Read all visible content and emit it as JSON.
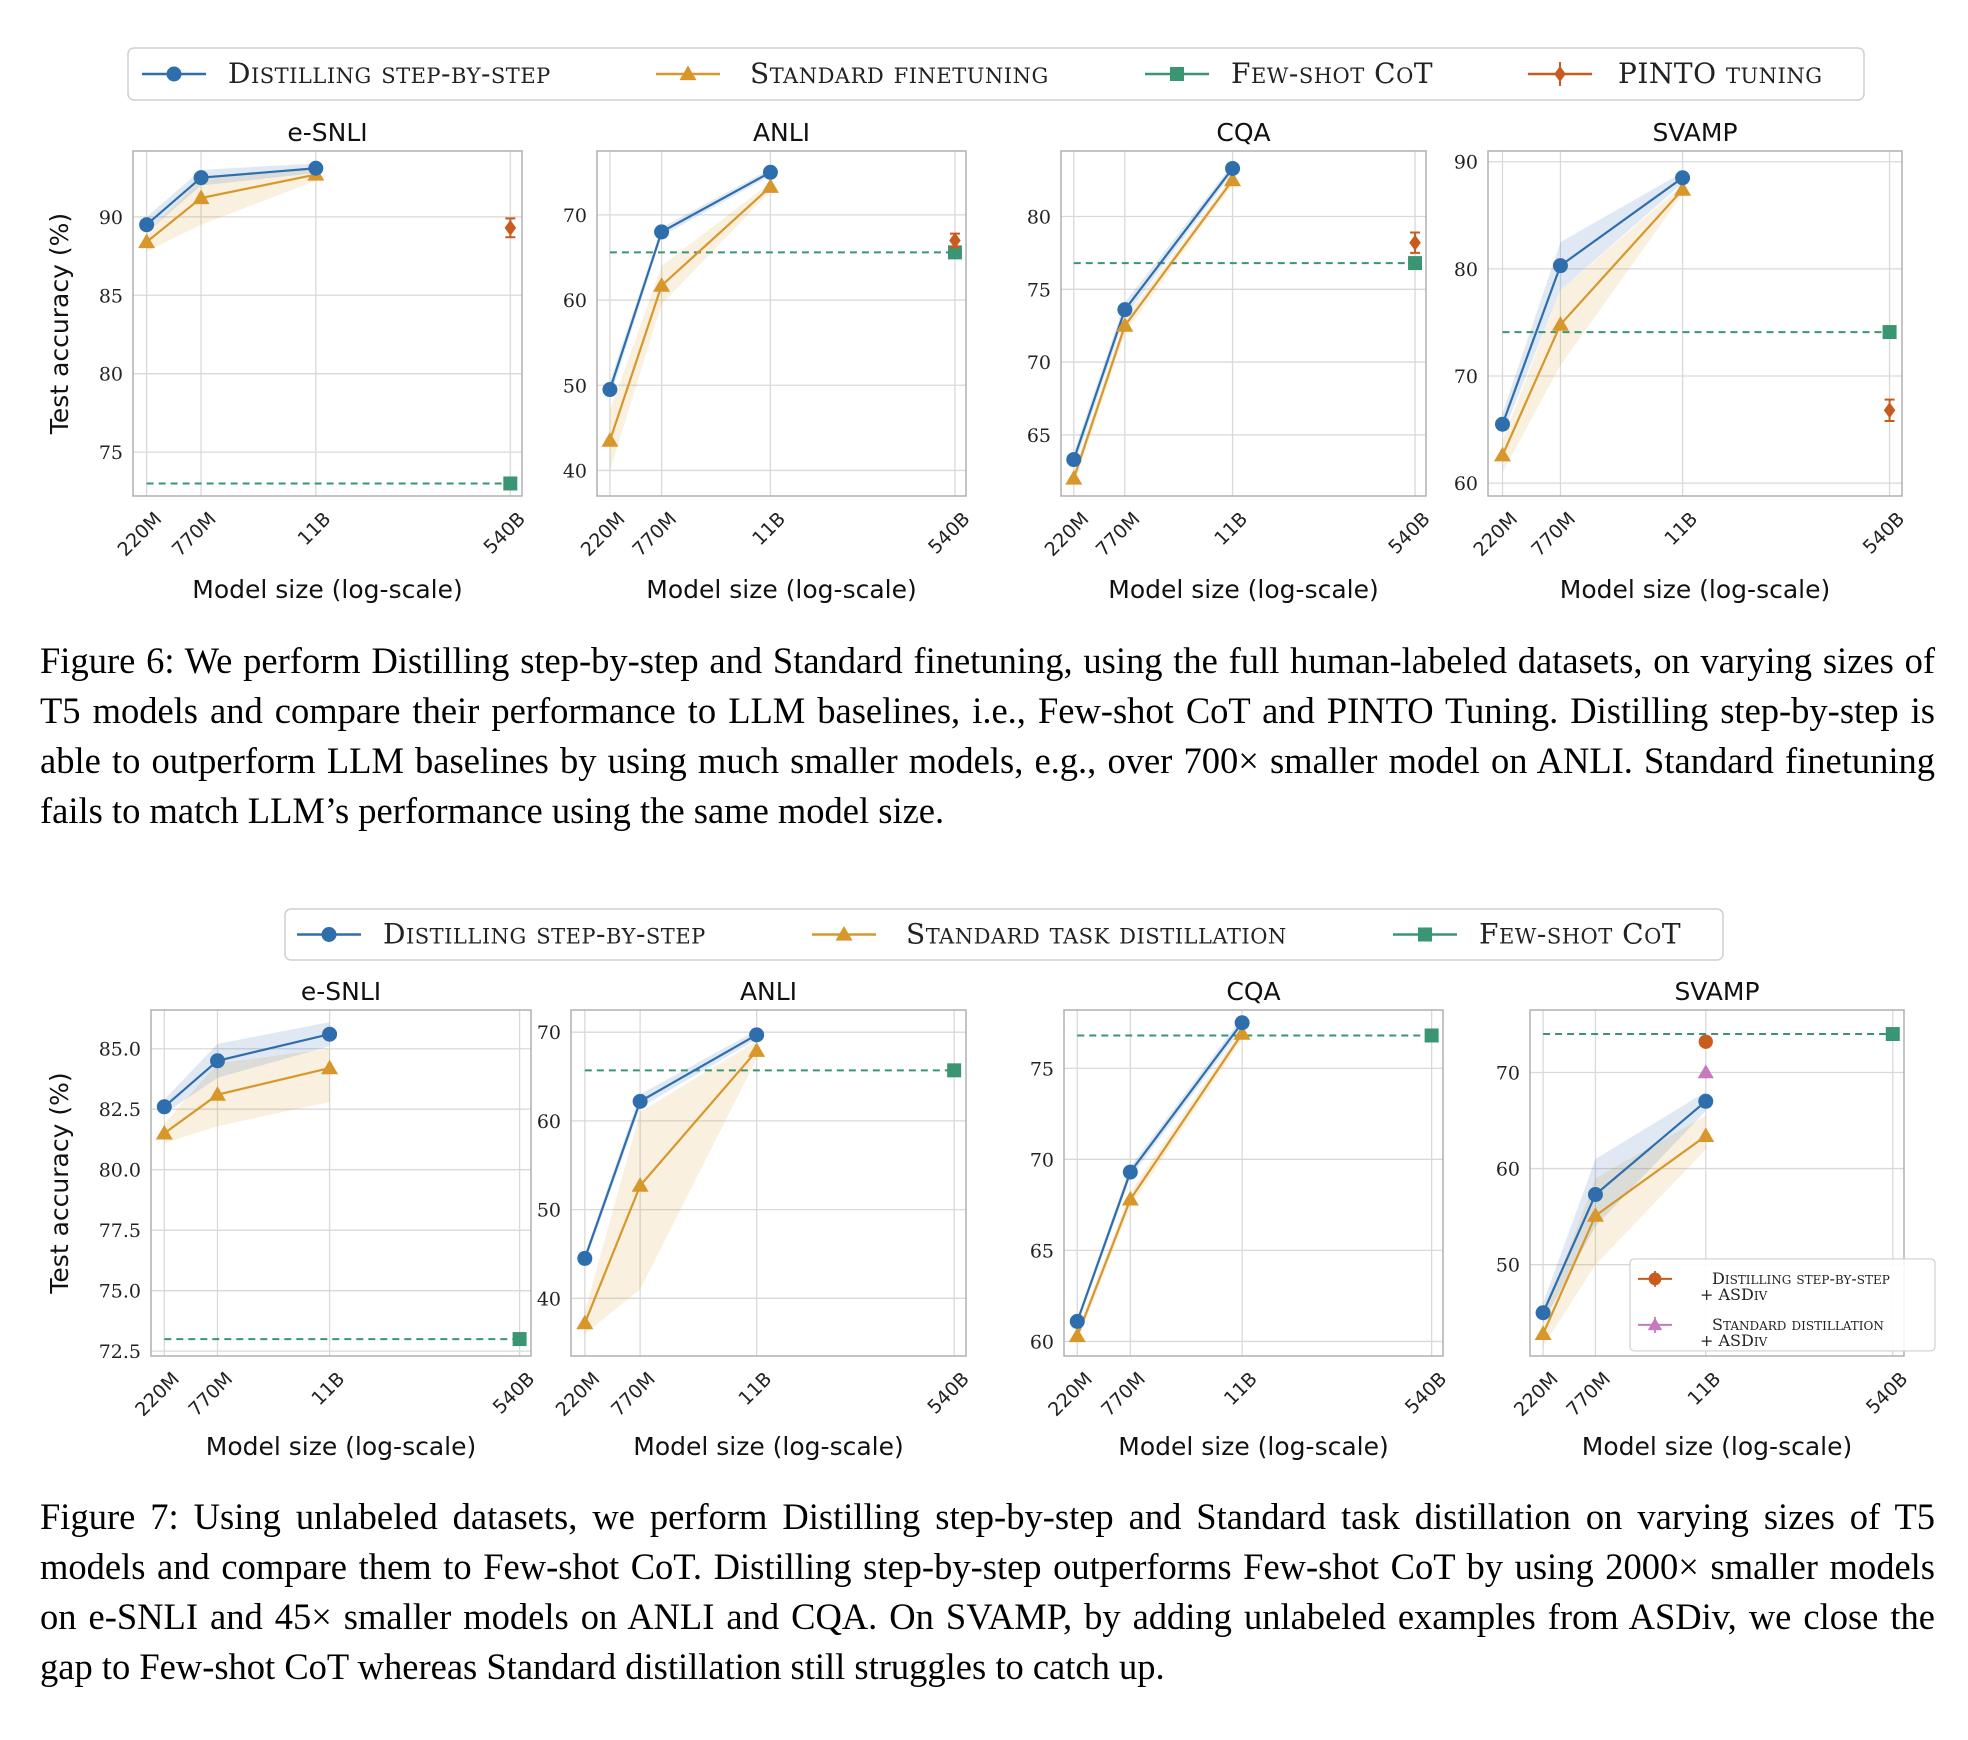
{
  "colors": {
    "distilling": "#2f6ead",
    "standard": "#d7972b",
    "fewshot": "#3a9572",
    "pinto": "#c75c1e",
    "asdiv_standard": "#c57ac0",
    "grid": "#d9d9d9",
    "frame": "#b0b0b0"
  },
  "x_ticks": [
    "220M",
    "770M",
    "11B",
    "540B"
  ],
  "chart_data": [
    {
      "figure": "fig6",
      "type": "line",
      "legend": [
        {
          "key": "distilling",
          "label": "Distilling step-by-step",
          "marker": "circle"
        },
        {
          "key": "standard",
          "label": "Standard finetuning",
          "marker": "triangle"
        },
        {
          "key": "fewshot",
          "label": "Few-shot CoT",
          "marker": "square"
        },
        {
          "key": "pinto",
          "label": "PINTO tuning",
          "marker": "diamond"
        }
      ],
      "ylabel": "Test accuracy (%)",
      "xlabel": "Model size (log-scale)",
      "panels": [
        {
          "title": "e-SNLI",
          "ylim": [
            72.2,
            94.2
          ],
          "yticks": [
            75,
            80,
            85,
            90
          ],
          "distilling": [
            89.5,
            92.5,
            93.1
          ],
          "distilling_band": [
            [
              89.0,
              90.0
            ],
            [
              92.0,
              93.0
            ],
            [
              92.8,
              93.4
            ]
          ],
          "standard": [
            88.4,
            91.2,
            92.7
          ],
          "standard_band": [
            [
              87.8,
              89.0
            ],
            [
              89.5,
              92.4
            ],
            [
              92.3,
              93.1
            ]
          ],
          "fewshot": 73.0,
          "pinto": 89.3,
          "pinto_err": 0.6
        },
        {
          "title": "ANLI",
          "ylim": [
            37,
            77.5
          ],
          "yticks": [
            40,
            50,
            60,
            70
          ],
          "distilling": [
            49.5,
            68.0,
            75.0
          ],
          "distilling_band": [
            [
              48.5,
              50.5
            ],
            [
              67.5,
              68.5
            ],
            [
              74.6,
              75.4
            ]
          ],
          "standard": [
            43.5,
            61.7,
            73.3
          ],
          "standard_band": [
            [
              40.0,
              47.0
            ],
            [
              59.5,
              64.0
            ],
            [
              72.8,
              73.8
            ]
          ],
          "fewshot": 65.6,
          "pinto": 67.0,
          "pinto_err": 0.8
        },
        {
          "title": "CQA",
          "ylim": [
            60.8,
            84.5
          ],
          "yticks": [
            65,
            70,
            75,
            80
          ],
          "distilling": [
            63.3,
            73.6,
            83.3
          ],
          "distilling_band": [
            [
              62.8,
              63.8
            ],
            [
              73.1,
              74.1
            ],
            [
              83.0,
              83.6
            ]
          ],
          "standard": [
            62.0,
            72.5,
            82.5
          ],
          "standard_band": [
            [
              61.5,
              62.5
            ],
            [
              72.0,
              73.0
            ],
            [
              82.2,
              82.8
            ]
          ],
          "fewshot": 76.8,
          "pinto": 78.2,
          "pinto_err": 0.7
        },
        {
          "title": "SVAMP",
          "ylim": [
            58.8,
            91
          ],
          "yticks": [
            60,
            70,
            80,
            90
          ],
          "distilling": [
            65.5,
            80.3,
            88.5
          ],
          "distilling_band": [
            [
              64.5,
              66.5
            ],
            [
              78.0,
              82.5
            ],
            [
              88.0,
              89.0
            ]
          ],
          "standard": [
            62.6,
            74.8,
            87.4
          ],
          "standard_band": [
            [
              61.0,
              64.0
            ],
            [
              71.0,
              78.0
            ],
            [
              87.0,
              87.8
            ]
          ],
          "fewshot": 74.1,
          "pinto": 66.8,
          "pinto_err": 1.0
        }
      ]
    },
    {
      "figure": "fig7",
      "type": "line",
      "legend": [
        {
          "key": "distilling",
          "label": "Distilling step-by-step",
          "marker": "circle"
        },
        {
          "key": "standard",
          "label": "Standard task distillation",
          "marker": "triangle"
        },
        {
          "key": "fewshot",
          "label": "Few-shot CoT",
          "marker": "square"
        }
      ],
      "ylabel": "Test accuracy (%)",
      "xlabel": "Model size (log-scale)",
      "panels": [
        {
          "title": "e-SNLI",
          "ylim": [
            72.3,
            86.6
          ],
          "yticks": [
            72.5,
            75.0,
            77.5,
            80.0,
            82.5,
            85.0
          ],
          "ytick_decimals": 1,
          "distilling": [
            82.6,
            84.5,
            85.6
          ],
          "distilling_band": [
            [
              82.3,
              82.9
            ],
            [
              83.8,
              85.2
            ],
            [
              85.1,
              86.1
            ]
          ],
          "standard": [
            81.5,
            83.1,
            84.2
          ],
          "standard_band": [
            [
              81.1,
              81.9
            ],
            [
              81.8,
              84.4
            ],
            [
              82.8,
              85.0
            ]
          ],
          "fewshot": 73.0
        },
        {
          "title": "ANLI",
          "ylim": [
            33.5,
            72.5
          ],
          "yticks": [
            40,
            50,
            60,
            70
          ],
          "distilling": [
            44.5,
            62.2,
            69.7
          ],
          "distilling_band": [
            [
              44.0,
              45.0
            ],
            [
              61.5,
              63.0
            ],
            [
              69.2,
              70.2
            ]
          ],
          "standard": [
            37.2,
            52.7,
            67.9
          ],
          "standard_band": [
            [
              36.0,
              38.5
            ],
            [
              41.0,
              61.0
            ],
            [
              67.0,
              69.0
            ]
          ],
          "fewshot": 65.7
        },
        {
          "title": "CQA",
          "ylim": [
            59.2,
            78.2
          ],
          "yticks": [
            60,
            65,
            70,
            75
          ],
          "distilling": [
            61.1,
            69.3,
            77.5
          ],
          "distilling_band": [
            [
              60.9,
              61.3
            ],
            [
              69.0,
              69.6
            ],
            [
              77.2,
              77.8
            ]
          ],
          "standard": [
            60.3,
            67.8,
            76.9
          ],
          "standard_band": [
            [
              60.0,
              60.6
            ],
            [
              67.4,
              68.2
            ],
            [
              76.6,
              77.2
            ]
          ],
          "fewshot": 76.8
        },
        {
          "title": "SVAMP",
          "ylim": [
            40.5,
            76.5
          ],
          "yticks": [
            50,
            60,
            70
          ],
          "distilling": [
            45.0,
            57.3,
            67.0
          ],
          "distilling_band": [
            [
              44.0,
              46.0
            ],
            [
              54.0,
              61.0
            ],
            [
              66.0,
              68.0
            ]
          ],
          "standard": [
            42.8,
            55.1,
            63.4
          ],
          "standard_band": [
            [
              41.5,
              44.5
            ],
            [
              50.0,
              59.0
            ],
            [
              62.0,
              65.5
            ]
          ],
          "fewshot": 74.0,
          "asdiv_points": [
            {
              "key": "pinto",
              "value": 73.2,
              "label1": "Distilling step-by-step",
              "label2": "+ ASDiv"
            },
            {
              "key": "asdiv_standard",
              "value": 70.0,
              "label1": "Standard distillation",
              "label2": "+ ASDiv"
            }
          ]
        }
      ]
    }
  ],
  "captions": {
    "fig6": {
      "label": "Figure 6:",
      "body": "We perform Distilling step-by-step and Standard finetuning, using the full human-labeled datasets, on varying sizes of T5 models and compare their performance to LLM baselines, i.e., Few-shot CoT and PINTO Tuning. Distilling step-by-step is able to outperform LLM baselines by using much smaller models, e.g., over 700× smaller model on ANLI. Standard finetuning fails to match LLM’s performance using the same model size."
    },
    "fig7": {
      "label": "Figure 7:",
      "body": "Using unlabeled datasets, we perform Distilling step-by-step and Standard task distillation on varying sizes of T5 models and compare them to Few-shot CoT. Distilling step-by-step outperforms Few-shot CoT by using 2000× smaller models on e-SNLI and 45× smaller models on ANLI and CQA. On SVAMP, by adding unlabeled examples from ASDiv, we close the gap to Few-shot CoT whereas Standard distillation still struggles to catch up."
    }
  }
}
